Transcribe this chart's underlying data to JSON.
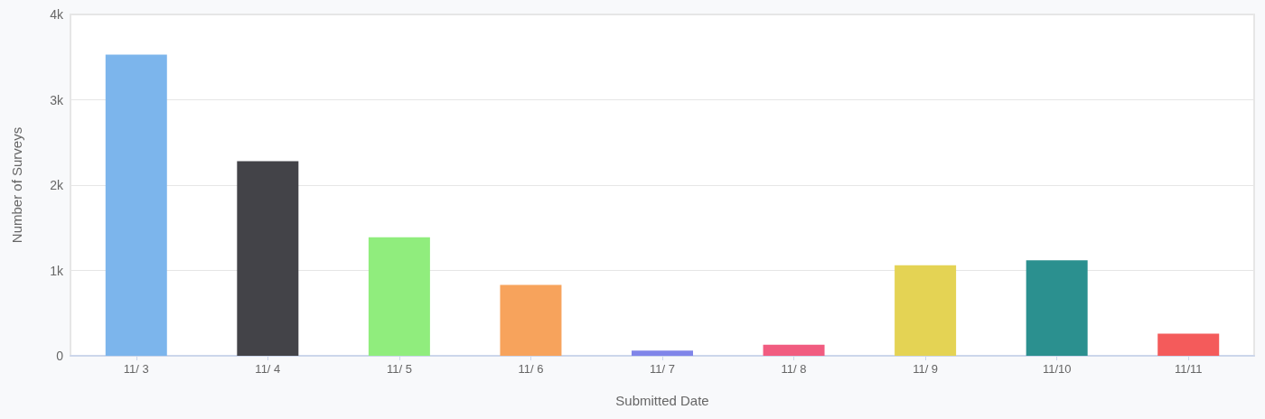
{
  "chart_data": {
    "type": "bar",
    "xlabel": "Submitted Date",
    "ylabel": "Number of Surveys",
    "categories": [
      "11/ 3",
      "11/ 4",
      "11/ 5",
      "11/ 6",
      "11/ 7",
      "11/ 8",
      "11/ 9",
      "11/10",
      "11/11"
    ],
    "values": [
      3530,
      2280,
      1390,
      830,
      60,
      130,
      1060,
      1120,
      260
    ],
    "colors": [
      "#7cb5ec",
      "#434348",
      "#90ed7d",
      "#f7a35c",
      "#8085e9",
      "#f15c80",
      "#e4d354",
      "#2b908f",
      "#f45b5b"
    ],
    "ylim": [
      0,
      4000
    ],
    "yticks": [
      0,
      {
        "value": 1000,
        "label": "1k"
      },
      {
        "value": 2000,
        "label": "2k"
      },
      {
        "value": 3000,
        "label": "3k"
      },
      {
        "value": 4000,
        "label": "4k"
      }
    ],
    "grid": "y"
  }
}
